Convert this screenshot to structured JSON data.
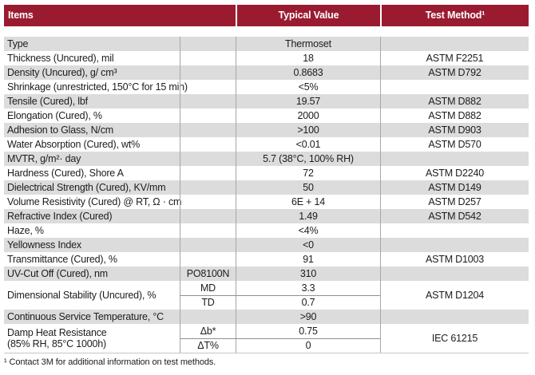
{
  "colors": {
    "header_bg": "#9a1b30",
    "header_text": "#ffffff",
    "row_shade": "#dcdcdd",
    "grid_line": "#a6a6a6",
    "text": "#1c1c1c"
  },
  "header": {
    "items": "Items",
    "typical_value": "Typical Value",
    "test_method": "Test Method¹"
  },
  "rows": [
    {
      "item": "Type",
      "sub": "",
      "value": "Thermoset",
      "method": "",
      "shaded": true
    },
    {
      "item": "Thickness (Uncured), mil",
      "sub": "",
      "value": "18",
      "method": "ASTM F2251",
      "shaded": false
    },
    {
      "item": "Density (Uncured), g/ cm³",
      "sub": "",
      "value": "0.8683",
      "method": "ASTM D792",
      "shaded": true
    },
    {
      "item": "Shrinkage (unrestricted, 150°C for 15 min)",
      "sub": "",
      "value": "<5%",
      "method": "",
      "shaded": false
    },
    {
      "item": "Tensile (Cured), lbf",
      "sub": "",
      "value": "19.57",
      "method": "ASTM D882",
      "shaded": true
    },
    {
      "item": "Elongation (Cured), %",
      "sub": "",
      "value": "2000",
      "method": "ASTM D882",
      "shaded": false
    },
    {
      "item": "Adhesion to Glass, N/cm",
      "sub": "",
      "value": ">100",
      "method": "ASTM D903",
      "shaded": true
    },
    {
      "item": "Water Absorption (Cured), wt%",
      "sub": "",
      "value": "<0.01",
      "method": "ASTM D570",
      "shaded": false
    },
    {
      "item": "MVTR, g/m²· day",
      "sub": "",
      "value": "5.7 (38°C, 100% RH)",
      "method": "",
      "shaded": true
    },
    {
      "item": "Hardness (Cured), Shore A",
      "sub": "",
      "value": "72",
      "method": "ASTM D2240",
      "shaded": false
    },
    {
      "item": "Dielectrical Strength (Cured), KV/mm",
      "sub": "",
      "value": "50",
      "method": "ASTM D149",
      "shaded": true
    },
    {
      "item": "Volume Resistivity (Cured) @ RT, Ω · cm",
      "sub": "",
      "value": "6E + 14",
      "method": "ASTM D257",
      "shaded": false
    },
    {
      "item": "Refractive Index (Cured)",
      "sub": "",
      "value": "1.49",
      "method": "ASTM D542",
      "shaded": true
    },
    {
      "item": "Haze, %",
      "sub": "",
      "value": "<4%",
      "method": "",
      "shaded": false
    },
    {
      "item": "Yellowness Index",
      "sub": "",
      "value": "<0",
      "method": "",
      "shaded": true
    },
    {
      "item": "Transmittance (Cured), %",
      "sub": "",
      "value": "91",
      "method": "ASTM D1003",
      "shaded": false
    },
    {
      "item": "UV-Cut Off (Cured), nm",
      "sub": "PO8100N",
      "value": "310",
      "method": "",
      "shaded": true
    },
    {
      "item": "Dimensional Stability (Uncured), %",
      "subrows": [
        {
          "sub": "MD",
          "value": "3.3"
        },
        {
          "sub": "TD",
          "value": "0.7"
        }
      ],
      "method": "ASTM D1204",
      "shaded": false
    },
    {
      "item": "Continuous Service Temperature, °C",
      "sub": "",
      "value": ">90",
      "method": "",
      "shaded": true
    },
    {
      "item": "Damp Heat Resistance\n(85% RH, 85°C 1000h)",
      "subrows": [
        {
          "sub": "Δb*",
          "value": "0.75"
        },
        {
          "sub": "ΔT%",
          "value": "0"
        }
      ],
      "method": "IEC 61215",
      "shaded": false
    }
  ],
  "footnote": "¹ Contact 3M for additional information on test methods."
}
